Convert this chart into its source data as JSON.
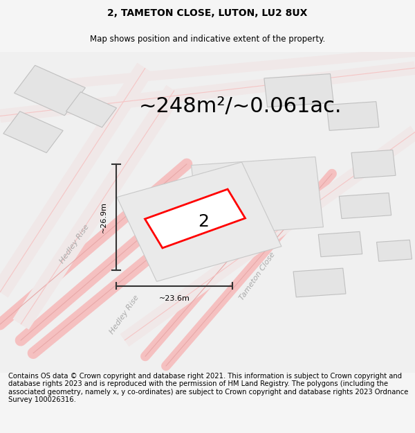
{
  "title": "2, TAMETON CLOSE, LUTON, LU2 8UX",
  "subtitle": "Map shows position and indicative extent of the property.",
  "area_text": "~248m²/~0.061ac.",
  "label_2": "2",
  "dim_height": "~26.9m",
  "dim_width": "~23.6m",
  "street_label1": "Hedley Rise",
  "street_label2": "Tameton Close",
  "street_label3": "Hedley Rise",
  "footer": "Contains OS data © Crown copyright and database right 2021. This information is subject to Crown copyright and database rights 2023 and is reproduced with the permission of HM Land Registry. The polygons (including the associated geometry, namely x, y co-ordinates) are subject to Crown copyright and database rights 2023 Ordnance Survey 100026316.",
  "bg_color": "#f5f5f5",
  "map_bg": "#f0f0f0",
  "plot_bg": "#ffffff",
  "road_color_light": "#f5c0c0",
  "road_color_dark": "#d08080",
  "building_fill": "#e8e8e8",
  "building_edge": "#cccccc",
  "red_plot_color": "#ff0000",
  "dim_line_color": "#333333",
  "title_fontsize": 10,
  "subtitle_fontsize": 8.5,
  "area_fontsize": 22,
  "label_fontsize": 18,
  "footer_fontsize": 7.2
}
